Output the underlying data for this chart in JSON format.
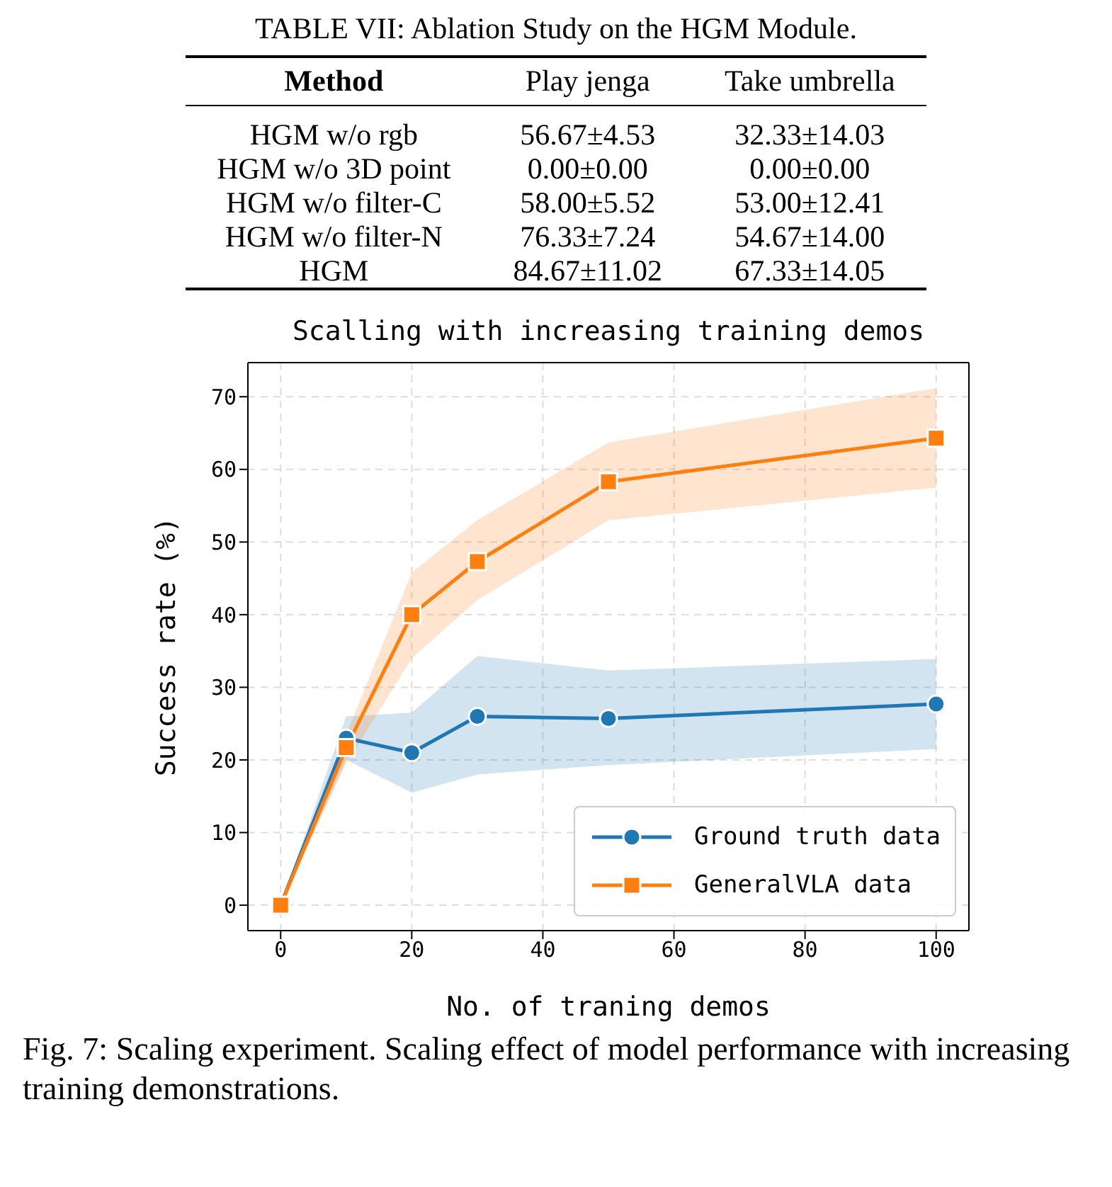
{
  "chart_data": [
    {
      "type": "other",
      "title": "TABLE VII: Ablation Study on the HGM Module.",
      "annotations": [
        "Method",
        "Play jenga",
        "Take umbrella",
        "HGM w/o rgb",
        "56.67±4.53",
        "32.33±14.03",
        "HGM w/o 3D point",
        "0.00±0.00",
        "0.00±0.00",
        "HGM w/o filter-C",
        "58.00±5.52",
        "53.00±12.41",
        "HGM w/o filter-N",
        "76.33±7.24",
        "54.67±14.00",
        "HGM",
        "84.67±11.02",
        "67.33±14.05"
      ]
    },
    {
      "type": "line",
      "title": "Scalling with increasing training demos",
      "xlabel": "No. of traning demos",
      "ylabel": "Success rate (%)",
      "x": [
        0,
        10,
        20,
        30,
        50,
        100
      ],
      "series": [
        {
          "name": "Ground truth data",
          "color": "#1f77b4",
          "marker": "circle",
          "values": [
            0,
            23,
            21,
            26,
            25.7,
            27.7
          ],
          "lower": [
            0,
            20,
            15.5,
            18,
            19.3,
            21.5
          ],
          "upper": [
            0,
            26,
            26.5,
            34.3,
            32.3,
            33.9
          ]
        },
        {
          "name": "GeneralVLA data",
          "color": "#ff7f0e",
          "marker": "square",
          "values": [
            0,
            21.7,
            40,
            47.3,
            58.3,
            64.3
          ],
          "lower": [
            0,
            19.5,
            34,
            42,
            53,
            57.5
          ],
          "upper": [
            0,
            23.5,
            45.8,
            53,
            63.7,
            71.2
          ]
        }
      ],
      "xlim": [
        -5,
        105
      ],
      "xticks": [
        0,
        20,
        40,
        60,
        80,
        100
      ],
      "ylim": [
        -3.5,
        74.7
      ],
      "yticks": [
        0,
        10,
        20,
        30,
        40,
        50,
        60,
        70
      ],
      "grid": true,
      "legend": "bottom right",
      "annotations": [
        "Fig. 7: Scaling experiment. Scaling effect of model performance with increasing training demonstrations."
      ]
    }
  ]
}
